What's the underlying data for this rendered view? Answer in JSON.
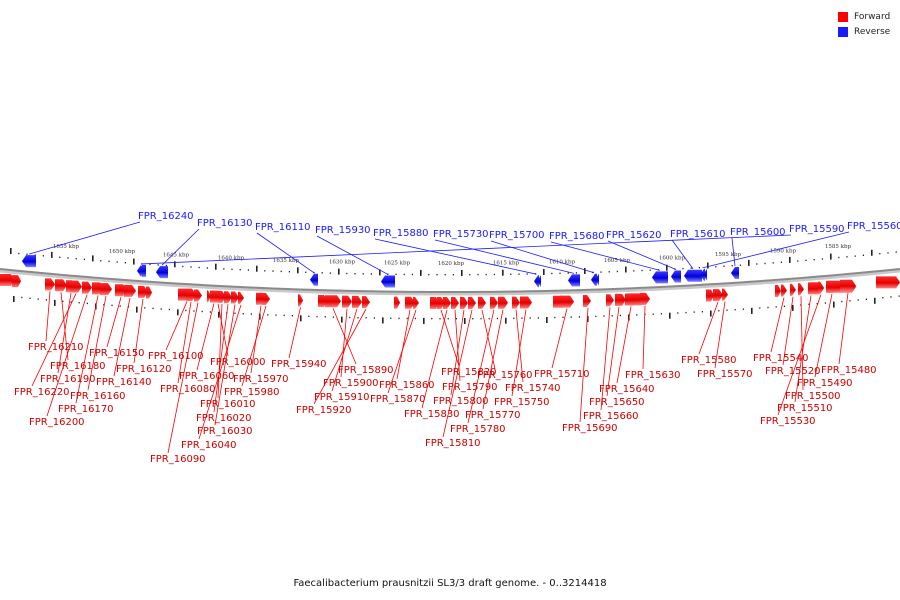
{
  "legend": {
    "forward_label": "Forward",
    "reverse_label": "Reverse",
    "forward_color": "#ff0000",
    "reverse_color": "#1a1aff"
  },
  "caption": "Faecalibacterium prausnitzii SL3/3 draft genome. - 0..3214418",
  "axis_ticks": [
    "1655 kbp",
    "1650 kbp",
    "1645 kbp",
    "1640 kbp",
    "1635 kbp",
    "1630 kbp",
    "1625 kbp",
    "1620 kbp",
    "1615 kbp",
    "1610 kbp",
    "1605 kbp",
    "1600 kbp",
    "1595 kbp",
    "1590 kbp",
    "1585 kbp"
  ],
  "reverse_genes": [
    "FPR_16240",
    "FPR_16130",
    "FPR_16110",
    "FPR_15930",
    "FPR_15880",
    "FPR_15730",
    "FPR_15700",
    "FPR_15680",
    "FPR_15620",
    "FPR_15610",
    "FPR_15600",
    "FPR_15590",
    "FPR_15560"
  ],
  "forward_genes": [
    "FPR_16210",
    "FPR_16180",
    "FPR_16190",
    "FPR_16220",
    "FPR_16200",
    "FPR_16170",
    "FPR_16160",
    "FPR_16150",
    "FPR_16140",
    "FPR_16120",
    "FPR_16100",
    "FPR_16080",
    "FPR_16090",
    "FPR_16060",
    "FPR_16000",
    "FPR_16010",
    "FPR_16020",
    "FPR_16030",
    "FPR_16040",
    "FPR_15970",
    "FPR_15980",
    "FPR_15940",
    "FPR_15890",
    "FPR_15900",
    "FPR_15910",
    "FPR_15920",
    "FPR_15860",
    "FPR_15870",
    "FPR_15820",
    "FPR_15830",
    "FPR_15790",
    "FPR_15800",
    "FPR_15810",
    "FPR_15760",
    "FPR_15780",
    "FPR_15770",
    "FPR_15740",
    "FPR_15750",
    "FPR_15710",
    "FPR_15690",
    "FPR_15660",
    "FPR_15650",
    "FPR_15640",
    "FPR_15630",
    "FPR_15580",
    "FPR_15570",
    "FPR_15540",
    "FPR_15520",
    "FPR_15500",
    "FPR_15510",
    "FPR_15530",
    "FPR_15490",
    "FPR_15480"
  ]
}
